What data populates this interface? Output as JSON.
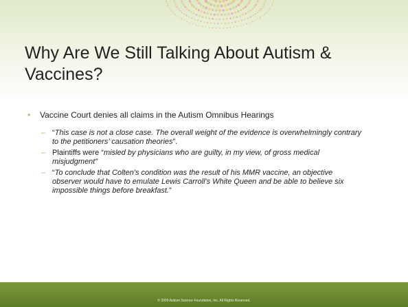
{
  "slide": {
    "title": "Why Are We Still Talking About Autism & Vaccines?",
    "bullets": [
      {
        "text": "Vaccine Court denies all claims in the Autism Omnibus Hearings",
        "sub_bullets": [
          {
            "runs": [
              {
                "text": "“",
                "style": "normal"
              },
              {
                "text": "This case is not a close case. The overall weight of the evidence is overwhelmingly contrary to the petitioners’ causation theories",
                "style": "italic"
              },
              {
                "text": "”.",
                "style": "normal"
              }
            ]
          },
          {
            "runs": [
              {
                "text": "Plaintiffs were “",
                "style": "normal"
              },
              {
                "text": "misled by physicians who are guilty, in my view, of gross medical misjudgment”",
                "style": "italic"
              }
            ]
          },
          {
            "runs": [
              {
                "text": "“",
                "style": "normal"
              },
              {
                "text": "To conclude that Colten's condition was the result of his MMR vaccine, an objective observer would have to emulate Lewis Carroll's White Queen and be able to believe six impossible things before breakfast.",
                "style": "italic"
              },
              {
                "text": "”",
                "style": "normal"
              }
            ]
          }
        ]
      }
    ],
    "footer": "© 2009 Autism Science Foundation, Inc. All Rights Reserved."
  }
}
